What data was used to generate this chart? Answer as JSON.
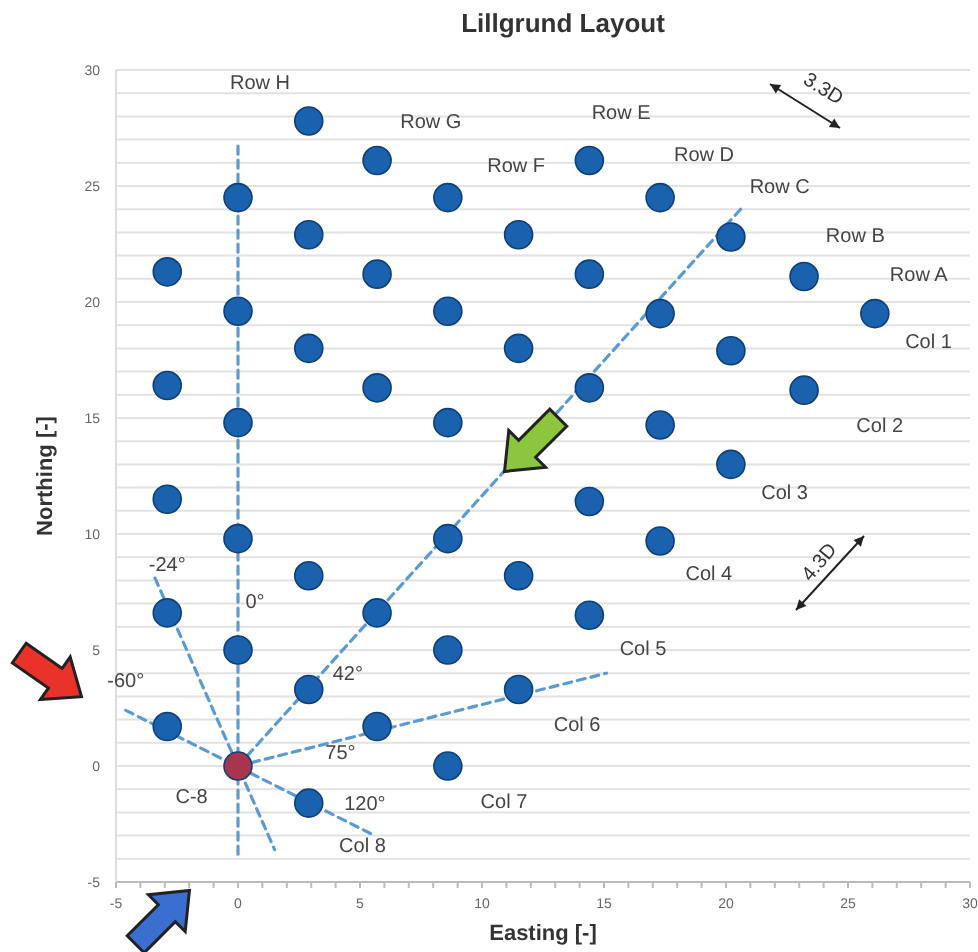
{
  "chart_data": {
    "type": "scatter",
    "title": "Lillgrund Layout",
    "xlabel": "Easting [-]",
    "ylabel": "Northing [-]",
    "xlim": [
      -5,
      30
    ],
    "ylim": [
      -5,
      30
    ],
    "xticks": [
      -5,
      {
        "value": -4,
        "label": null
      },
      {
        "value": -3,
        "label": null
      },
      {
        "value": -2,
        "label": null
      },
      {
        "value": -1,
        "label": null
      },
      0,
      {
        "value": 1,
        "label": null
      },
      {
        "value": 2,
        "label": null
      },
      {
        "value": 3,
        "label": null
      },
      {
        "value": 4,
        "label": null
      },
      5,
      {
        "value": 6,
        "label": null
      },
      {
        "value": 7,
        "label": null
      },
      {
        "value": 8,
        "label": null
      },
      {
        "value": 9,
        "label": null
      },
      10,
      {
        "value": 11,
        "label": null
      },
      {
        "value": 12,
        "label": null
      },
      {
        "value": 13,
        "label": null
      },
      {
        "value": 14,
        "label": null
      },
      15,
      {
        "value": 16,
        "label": null
      },
      {
        "value": 17,
        "label": null
      },
      {
        "value": 18,
        "label": null
      },
      {
        "value": 19,
        "label": null
      },
      20,
      {
        "value": 21,
        "label": null
      },
      {
        "value": 22,
        "label": null
      },
      {
        "value": 23,
        "label": null
      },
      {
        "value": 24,
        "label": null
      },
      25,
      {
        "value": 26,
        "label": null
      },
      {
        "value": 27,
        "label": null
      },
      {
        "value": 28,
        "label": null
      },
      {
        "value": 29,
        "label": null
      },
      30
    ],
    "yticks": [
      -5,
      {
        "value": -4,
        "label": null
      },
      {
        "value": -3,
        "label": null
      },
      {
        "value": -2,
        "label": null
      },
      {
        "value": -1,
        "label": null
      },
      0,
      {
        "value": 1,
        "label": null
      },
      {
        "value": 2,
        "label": null
      },
      {
        "value": 3,
        "label": null
      },
      {
        "value": 4,
        "label": null
      },
      5,
      {
        "value": 6,
        "label": null
      },
      {
        "value": 7,
        "label": null
      },
      {
        "value": 8,
        "label": null
      },
      {
        "value": 9,
        "label": null
      },
      10,
      {
        "value": 11,
        "label": null
      },
      {
        "value": 12,
        "label": null
      },
      {
        "value": 13,
        "label": null
      },
      {
        "value": 14,
        "label": null
      },
      15,
      {
        "value": 16,
        "label": null
      },
      {
        "value": 17,
        "label": null
      },
      {
        "value": 18,
        "label": null
      },
      {
        "value": 19,
        "label": null
      },
      20,
      {
        "value": 21,
        "label": null
      },
      {
        "value": 22,
        "label": null
      },
      {
        "value": 23,
        "label": null
      },
      {
        "value": 24,
        "label": null
      },
      25,
      {
        "value": 26,
        "label": null
      },
      {
        "value": 27,
        "label": null
      },
      {
        "value": 28,
        "label": null
      },
      {
        "value": 29,
        "label": null
      },
      30
    ],
    "grid": "y",
    "marker": "circle",
    "series": [
      {
        "type": "line",
        "color": "#5b9bd5",
        "line_style": "dashed",
        "marker": "none",
        "x": [
          0,
          0
        ],
        "values": [
          -3.8,
          26.8
        ]
      },
      {
        "type": "line",
        "color": "#5b9bd5",
        "line_style": "dashed",
        "marker": "none",
        "x": [
          -3.4,
          1.5
        ],
        "values": [
          8.1,
          -3.6
        ]
      },
      {
        "type": "line",
        "color": "#5b9bd5",
        "line_style": "dashed",
        "marker": "none",
        "x": [
          -4.6,
          5.6
        ],
        "values": [
          2.4,
          -3.0
        ]
      },
      {
        "type": "line",
        "color": "#5b9bd5",
        "line_style": "dashed",
        "marker": "none",
        "x": [
          0,
          20.6
        ],
        "values": [
          0,
          24.0
        ]
      },
      {
        "type": "line",
        "color": "#5b9bd5",
        "line_style": "dashed",
        "marker": "none",
        "x": [
          0,
          15.1
        ],
        "values": [
          0,
          4.0
        ]
      },
      {
        "color": "#1a62ad",
        "x": [
          -2.9,
          -2.9,
          -2.9,
          -2.9,
          -2.9,
          0,
          0,
          0,
          0,
          0,
          2.9,
          2.9,
          2.9,
          2.9,
          2.9,
          2.9,
          5.7,
          5.7,
          5.7,
          5.7,
          5.7,
          8.6,
          8.6,
          8.6,
          8.6,
          8.6,
          8.6,
          11.5,
          11.5,
          11.5,
          11.5,
          14.4,
          14.4,
          14.4,
          14.4,
          14.4,
          17.3,
          17.3,
          17.3,
          17.3,
          20.2,
          20.2,
          20.2,
          23.2,
          23.2,
          26.1
        ],
        "values": [
          21.3,
          16.4,
          11.5,
          6.6,
          1.7,
          24.5,
          19.6,
          14.8,
          9.8,
          5.0,
          27.8,
          22.9,
          18.0,
          8.2,
          3.3,
          -1.6,
          26.1,
          21.2,
          16.3,
          6.6,
          1.7,
          24.5,
          19.6,
          14.8,
          9.8,
          5.0,
          0,
          22.9,
          18.0,
          8.2,
          3.3,
          26.1,
          21.2,
          16.3,
          11.4,
          6.5,
          24.5,
          19.5,
          14.7,
          9.7,
          22.8,
          17.9,
          13.0,
          21.1,
          16.2,
          19.5
        ]
      },
      {
        "color": "#a8344e",
        "x": [
          0
        ],
        "values": [
          0
        ]
      }
    ],
    "annotations": [
      "Row H",
      "Row G",
      "Row F",
      "Row E",
      "Row D",
      "Row C",
      "Row B",
      "Row A",
      "Col 1",
      "Col 2",
      "Col 3",
      "Col 4",
      "Col 5",
      "Col 6",
      "Col 7",
      "Col 8",
      "C-8",
      "-24°",
      "0°",
      "-60°",
      "42°",
      "75°",
      "120°",
      "3.3D",
      "4.3D"
    ]
  }
}
